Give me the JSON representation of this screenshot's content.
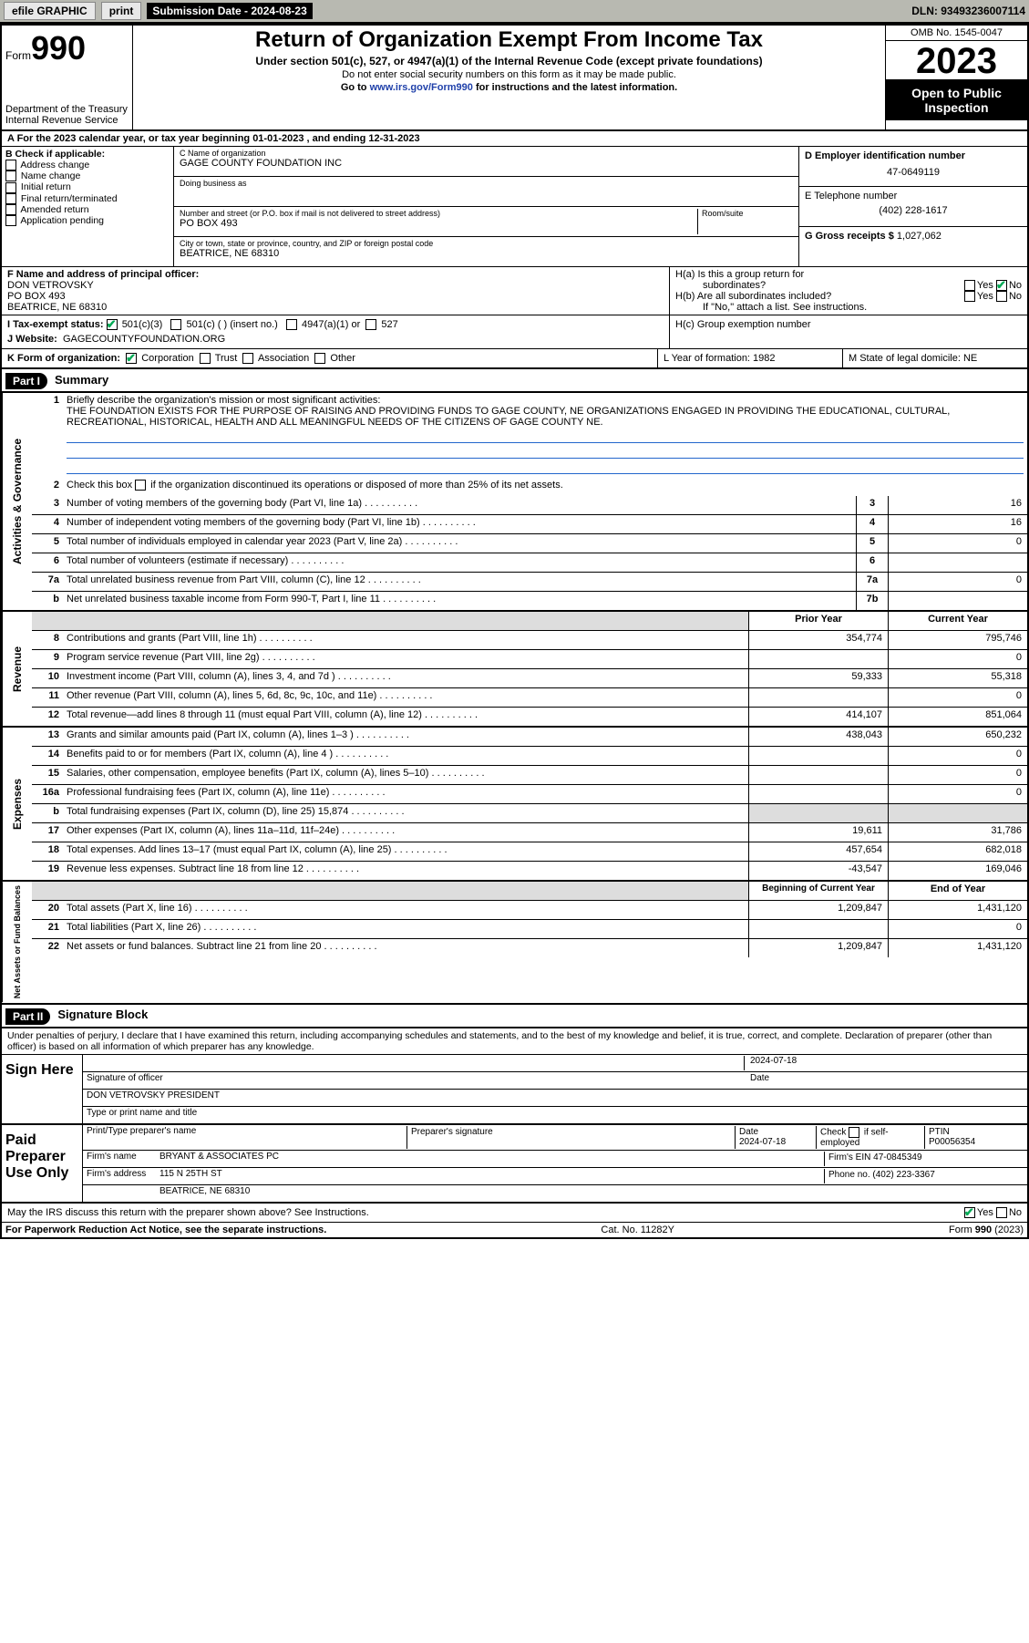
{
  "topbar": {
    "efile": "efile GRAPHIC",
    "print": "print",
    "submission_label": "Submission Date - 2024-08-23",
    "dln": "DLN: 93493236007114"
  },
  "header": {
    "form_label": "Form",
    "form_number": "990",
    "dept": "Department of the Treasury",
    "irs": "Internal Revenue Service",
    "title": "Return of Organization Exempt From Income Tax",
    "sub1": "Under section 501(c), 527, or 4947(a)(1) of the Internal Revenue Code (except private foundations)",
    "sub2": "Do not enter social security numbers on this form as it may be made public.",
    "goto": "Go to www.irs.gov/Form990 for instructions and the latest information.",
    "omb": "OMB No. 1545-0047",
    "year": "2023",
    "open": "Open to Public Inspection"
  },
  "lineA": "A  For the 2023 calendar year, or tax year beginning 01-01-2023   , and ending 12-31-2023",
  "sectionB": {
    "label": "B Check if applicable:",
    "items": [
      "Address change",
      "Name change",
      "Initial return",
      "Final return/terminated",
      "Amended return",
      "Application pending"
    ]
  },
  "sectionC": {
    "name_lbl": "C Name of organization",
    "name": "GAGE COUNTY FOUNDATION INC",
    "dba_lbl": "Doing business as",
    "dba": "",
    "street_lbl": "Number and street (or P.O. box if mail is not delivered to street address)",
    "room_lbl": "Room/suite",
    "street": "PO BOX 493",
    "city_lbl": "City or town, state or province, country, and ZIP or foreign postal code",
    "city": "BEATRICE, NE  68310"
  },
  "sectionD": {
    "ein_lbl": "D Employer identification number",
    "ein": "47-0649119",
    "tel_lbl": "E Telephone number",
    "tel": "(402) 228-1617",
    "gross_lbl": "G Gross receipts $",
    "gross": "1,027,062"
  },
  "sectionF": {
    "lbl": "F Name and address of principal officer:",
    "name": "DON VETROVSKY",
    "addr1": "PO BOX 493",
    "addr2": "BEATRICE, NE  68310"
  },
  "sectionH": {
    "a": "H(a)  Is this a group return for",
    "a2": "subordinates?",
    "b": "H(b)  Are all subordinates included?",
    "b2": "If \"No,\" attach a list. See instructions.",
    "c": "H(c)  Group exemption number"
  },
  "sectionI": {
    "lbl": "I     Tax-exempt status:",
    "opts": [
      "501(c)(3)",
      "501(c) (  ) (insert no.)",
      "4947(a)(1) or",
      "527"
    ]
  },
  "sectionJ": {
    "lbl": "J     Website:",
    "val": "GAGECOUNTYFOUNDATION.ORG"
  },
  "sectionK": {
    "lbl": "K Form of organization:",
    "opts": [
      "Corporation",
      "Trust",
      "Association",
      "Other"
    ],
    "L": "L Year of formation: 1982",
    "M": "M State of legal domicile: NE"
  },
  "part1": {
    "bar": "Part I",
    "title": "Summary",
    "mission_lbl": "Briefly describe the organization's mission or most significant activities:",
    "mission": "THE FOUNDATION EXISTS FOR THE PURPOSE OF RAISING AND PROVIDING FUNDS TO GAGE COUNTY, NE ORGANIZATIONS ENGAGED IN PROVIDING THE EDUCATIONAL, CULTURAL, RECREATIONAL, HISTORICAL, HEALTH AND ALL MEANINGFUL NEEDS OF THE CITIZENS OF GAGE COUNTY NE."
  },
  "governance": {
    "line2": "Check this box       if the organization discontinued its operations or disposed of more than 25% of its net assets.",
    "rows": [
      {
        "n": "3",
        "t": "Number of voting members of the governing body (Part VI, line 1a)",
        "k": "3",
        "v": "16"
      },
      {
        "n": "4",
        "t": "Number of independent voting members of the governing body (Part VI, line 1b)",
        "k": "4",
        "v": "16"
      },
      {
        "n": "5",
        "t": "Total number of individuals employed in calendar year 2023 (Part V, line 2a)",
        "k": "5",
        "v": "0"
      },
      {
        "n": "6",
        "t": "Total number of volunteers (estimate if necessary)",
        "k": "6",
        "v": ""
      },
      {
        "n": "7a",
        "t": "Total unrelated business revenue from Part VIII, column (C), line 12",
        "k": "7a",
        "v": "0"
      },
      {
        "n": "b",
        "t": "Net unrelated business taxable income from Form 990-T, Part I, line 11",
        "k": "7b",
        "v": ""
      }
    ]
  },
  "revenue": {
    "head1": "Prior Year",
    "head2": "Current Year",
    "rows": [
      {
        "n": "8",
        "t": "Contributions and grants (Part VIII, line 1h)",
        "p": "354,774",
        "c": "795,746"
      },
      {
        "n": "9",
        "t": "Program service revenue (Part VIII, line 2g)",
        "p": "",
        "c": "0"
      },
      {
        "n": "10",
        "t": "Investment income (Part VIII, column (A), lines 3, 4, and 7d )",
        "p": "59,333",
        "c": "55,318"
      },
      {
        "n": "11",
        "t": "Other revenue (Part VIII, column (A), lines 5, 6d, 8c, 9c, 10c, and 11e)",
        "p": "",
        "c": "0"
      },
      {
        "n": "12",
        "t": "Total revenue—add lines 8 through 11 (must equal Part VIII, column (A), line 12)",
        "p": "414,107",
        "c": "851,064"
      }
    ]
  },
  "expenses": {
    "rows": [
      {
        "n": "13",
        "t": "Grants and similar amounts paid (Part IX, column (A), lines 1–3 )",
        "p": "438,043",
        "c": "650,232"
      },
      {
        "n": "14",
        "t": "Benefits paid to or for members (Part IX, column (A), line 4 )",
        "p": "",
        "c": "0"
      },
      {
        "n": "15",
        "t": "Salaries, other compensation, employee benefits (Part IX, column (A), lines 5–10)",
        "p": "",
        "c": "0"
      },
      {
        "n": "16a",
        "t": "Professional fundraising fees (Part IX, column (A), line 11e)",
        "p": "",
        "c": "0"
      },
      {
        "n": "b",
        "t": "Total fundraising expenses (Part IX, column (D), line 25) 15,874",
        "p": "shaded",
        "c": "shaded"
      },
      {
        "n": "17",
        "t": "Other expenses (Part IX, column (A), lines 11a–11d, 11f–24e)",
        "p": "19,611",
        "c": "31,786"
      },
      {
        "n": "18",
        "t": "Total expenses. Add lines 13–17 (must equal Part IX, column (A), line 25)",
        "p": "457,654",
        "c": "682,018"
      },
      {
        "n": "19",
        "t": "Revenue less expenses. Subtract line 18 from line 12",
        "p": "-43,547",
        "c": "169,046"
      }
    ]
  },
  "netassets": {
    "head1": "Beginning of Current Year",
    "head2": "End of Year",
    "rows": [
      {
        "n": "20",
        "t": "Total assets (Part X, line 16)",
        "p": "1,209,847",
        "c": "1,431,120"
      },
      {
        "n": "21",
        "t": "Total liabilities (Part X, line 26)",
        "p": "",
        "c": "0"
      },
      {
        "n": "22",
        "t": "Net assets or fund balances. Subtract line 21 from line 20",
        "p": "1,209,847",
        "c": "1,431,120"
      }
    ]
  },
  "part2": {
    "bar": "Part II",
    "title": "Signature Block",
    "penalties": "Under penalties of perjury, I declare that I have examined this return, including accompanying schedules and statements, and to the best of my knowledge and belief, it is true, correct, and complete. Declaration of preparer (other than officer) is based on all information of which preparer has any knowledge."
  },
  "sign": {
    "here": "Sign Here",
    "sig_officer": "Signature of officer",
    "date_lbl": "Date",
    "date": "2024-07-18",
    "name": "DON VETROVSKY PRESIDENT",
    "type_lbl": "Type or print name and title"
  },
  "paid": {
    "lbl": "Paid Preparer Use Only",
    "cols": [
      "Print/Type preparer's name",
      "Preparer's signature",
      "Date",
      "Check       if self-employed",
      "PTIN"
    ],
    "date": "2024-07-18",
    "ptin": "P00056354",
    "firm_name_lbl": "Firm's name",
    "firm_name": "BRYANT & ASSOCIATES PC",
    "firm_ein_lbl": "Firm's EIN",
    "firm_ein": "47-0845349",
    "firm_addr_lbl": "Firm's address",
    "firm_addr1": "115 N 25TH ST",
    "firm_addr2": "BEATRICE, NE  68310",
    "phone_lbl": "Phone no.",
    "phone": "(402) 223-3367"
  },
  "discuss": "May the IRS discuss this return with the preparer shown above? See Instructions.",
  "footer": {
    "l": "For Paperwork Reduction Act Notice, see the separate instructions.",
    "c": "Cat. No. 11282Y",
    "r": "Form 990 (2023)"
  },
  "yesno": {
    "yes": "Yes",
    "no": "No"
  },
  "vlabels": {
    "gov": "Activities & Governance",
    "rev": "Revenue",
    "exp": "Expenses",
    "net": "Net Assets or Fund Balances"
  }
}
